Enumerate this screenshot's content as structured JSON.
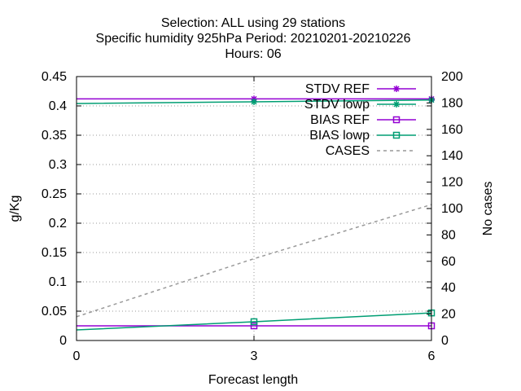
{
  "chart_data": {
    "type": "line",
    "title_lines": [
      "Selection: ALL using    29 stations",
      "Specific humidity 925hPa   Period: 20210201-20210226",
      "Hours:  06"
    ],
    "xlabel": "Forecast length",
    "ylabel": "g/Kg",
    "y2label": "No cases",
    "x": [
      0,
      3,
      6
    ],
    "xlim": [
      0,
      6
    ],
    "ylim": [
      0,
      0.45
    ],
    "y2lim": [
      0,
      200
    ],
    "x_ticks": [
      "0",
      "3",
      "6"
    ],
    "y_ticks": [
      "0",
      "0.05",
      "0.1",
      "0.15",
      "0.2",
      "0.25",
      "0.3",
      "0.35",
      "0.4",
      "0.45"
    ],
    "y2_ticks": [
      "0",
      "20",
      "40",
      "60",
      "80",
      "100",
      "120",
      "140",
      "160",
      "180",
      "200"
    ],
    "grid": true,
    "legend_position": "top-right",
    "series": [
      {
        "name": "STDV REF",
        "axis": "y1",
        "marker": "star",
        "color": "#9400d3",
        "dash": "",
        "values": [
          0.412,
          0.412,
          0.412
        ]
      },
      {
        "name": "STDV lowp",
        "axis": "y1",
        "marker": "star",
        "color": "#009e73",
        "dash": "",
        "values": [
          0.404,
          0.407,
          0.41
        ]
      },
      {
        "name": "BIAS REF",
        "axis": "y1",
        "marker": "square",
        "color": "#9400d3",
        "dash": "",
        "values": [
          0.025,
          0.025,
          0.025
        ]
      },
      {
        "name": "BIAS lowp",
        "axis": "y1",
        "marker": "square",
        "color": "#009e73",
        "dash": "",
        "values": [
          0.018,
          0.032,
          0.047
        ]
      },
      {
        "name": "CASES",
        "axis": "y2",
        "marker": "none",
        "color": "#999999",
        "dash": "4,4",
        "values": [
          18,
          62,
          103
        ]
      }
    ]
  }
}
